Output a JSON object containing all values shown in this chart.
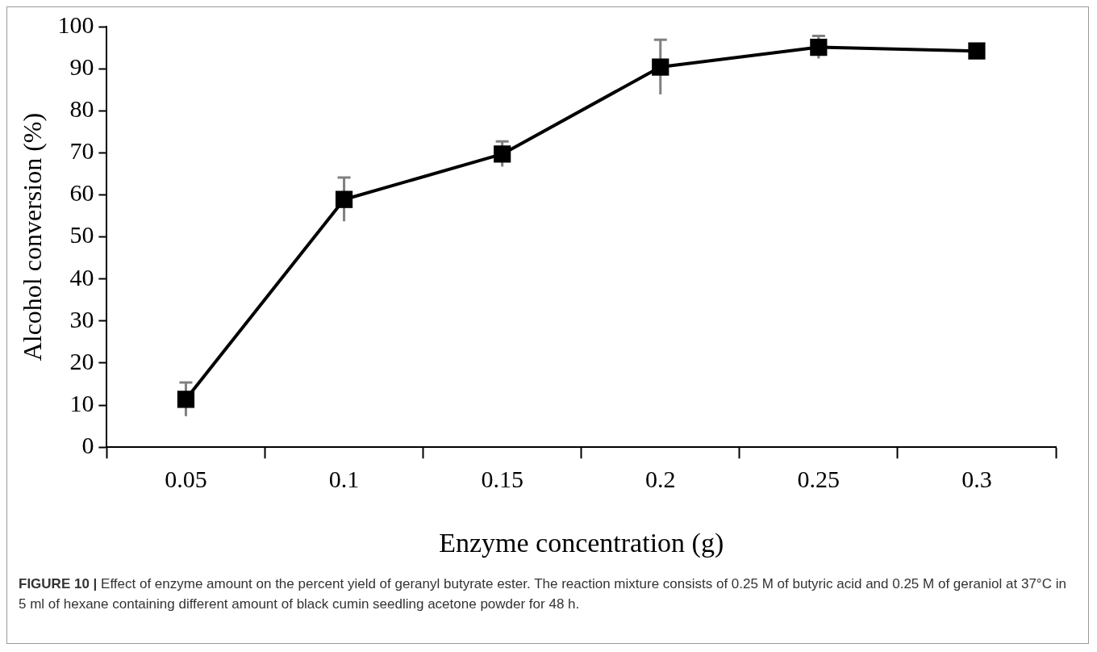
{
  "chart_data": {
    "type": "line",
    "xlabel": "Enzyme concentration (g)",
    "ylabel": "Alcohol conversion (%)",
    "categories": [
      "0.05",
      "0.1",
      "0.15",
      "0.2",
      "0.25",
      "0.3"
    ],
    "series": [
      {
        "color": "#000000",
        "values": [
          11.4,
          58.9,
          69.7,
          90.4,
          95.1,
          94.2
        ],
        "errors": [
          4,
          5.2,
          3,
          6.5,
          2.7,
          null
        ]
      }
    ],
    "ylim": [
      0,
      100
    ],
    "yticks": [
      0,
      10,
      20,
      30,
      40,
      50,
      60,
      70,
      80,
      90,
      100
    ],
    "grid": false,
    "legend": false,
    "marker": "square",
    "line_style": "solid",
    "annotations": [
      "FIGURE 10 |",
      "Effect of enzyme amount on the percent yield of geranyl butyrate ester. The reaction mixture consists of 0.25 M of butyric acid and 0.25 M of geraniol at 37°C in 5 ml of hexane containing different amount of black cumin seedling acetone powder for 48 h."
    ]
  }
}
